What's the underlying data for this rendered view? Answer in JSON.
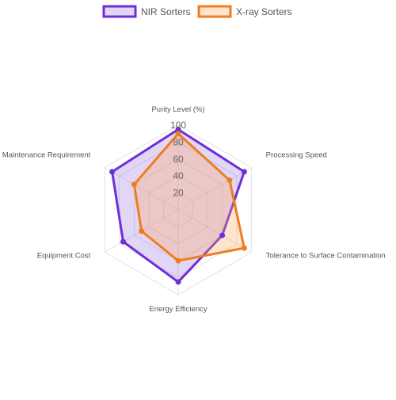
{
  "chart_data": {
    "type": "radar",
    "categories": [
      "Purity Level (%)",
      "Processing Speed",
      "Tolerance to Surface Contamination",
      "Energy Efficiency",
      "Equipment Cost",
      "Maintenance Requirement"
    ],
    "series": [
      {
        "name": "NIR Sorters",
        "values": [
          95,
          90,
          60,
          85,
          75,
          90
        ],
        "color": "#6d2fd6",
        "fill": "rgba(140, 90, 220, 0.25)"
      },
      {
        "name": "X-ray Sorters",
        "values": [
          90,
          70,
          90,
          60,
          50,
          60
        ],
        "color": "#f07d1f",
        "fill": "rgba(255, 170, 90, 0.30)"
      }
    ],
    "rlim": [
      0,
      100
    ],
    "ticks": [
      "20",
      "40",
      "60",
      "80",
      "100"
    ],
    "grid": true,
    "legend_position": "top"
  }
}
